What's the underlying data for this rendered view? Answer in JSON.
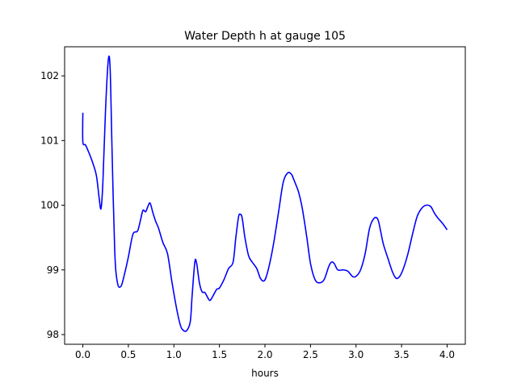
{
  "chart_data": {
    "type": "line",
    "title": "Water Depth h at gauge 105",
    "xlabel": "hours",
    "ylabel": "",
    "xlim": [
      -0.2,
      4.2
    ],
    "ylim": [
      97.85,
      102.45
    ],
    "grid": false,
    "xticks": [
      {
        "value": 0.0,
        "label": "0.0"
      },
      {
        "value": 0.5,
        "label": "0.5"
      },
      {
        "value": 1.0,
        "label": "1.0"
      },
      {
        "value": 1.5,
        "label": "1.5"
      },
      {
        "value": 2.0,
        "label": "2.0"
      },
      {
        "value": 2.5,
        "label": "2.5"
      },
      {
        "value": 3.0,
        "label": "3.0"
      },
      {
        "value": 3.5,
        "label": "3.5"
      },
      {
        "value": 4.0,
        "label": "4.0"
      }
    ],
    "yticks": [
      {
        "value": 98,
        "label": "98"
      },
      {
        "value": 99,
        "label": "99"
      },
      {
        "value": 100,
        "label": "100"
      },
      {
        "value": 101,
        "label": "101"
      },
      {
        "value": 102,
        "label": "102"
      }
    ],
    "series": [
      {
        "color": "#0000ff",
        "x": [
          0.0,
          0.0,
          0.03,
          0.07,
          0.11,
          0.15,
          0.18,
          0.2,
          0.22,
          0.25,
          0.28,
          0.3,
          0.32,
          0.35,
          0.38,
          0.42,
          0.46,
          0.5,
          0.55,
          0.6,
          0.63,
          0.66,
          0.69,
          0.72,
          0.74,
          0.77,
          0.8,
          0.83,
          0.88,
          0.93,
          0.98,
          1.03,
          1.07,
          1.1,
          1.14,
          1.18,
          1.2,
          1.23,
          1.25,
          1.28,
          1.31,
          1.34,
          1.38,
          1.4,
          1.43,
          1.47,
          1.5,
          1.55,
          1.6,
          1.65,
          1.68,
          1.71,
          1.73,
          1.75,
          1.78,
          1.82,
          1.86,
          1.91,
          1.95,
          1.99,
          2.02,
          2.06,
          2.1,
          2.15,
          2.2,
          2.25,
          2.29,
          2.31,
          2.33,
          2.37,
          2.41,
          2.46,
          2.5,
          2.55,
          2.6,
          2.65,
          2.7,
          2.73,
          2.76,
          2.8,
          2.86,
          2.91,
          2.96,
          3.0,
          3.05,
          3.1,
          3.15,
          3.2,
          3.24,
          3.27,
          3.3,
          3.35,
          3.4,
          3.44,
          3.48,
          3.52,
          3.57,
          3.62,
          3.67,
          3.72,
          3.77,
          3.82,
          3.86,
          3.9,
          3.95,
          4.0
        ],
        "y": [
          101.43,
          100.98,
          100.93,
          100.8,
          100.65,
          100.45,
          100.1,
          99.95,
          100.35,
          101.5,
          102.25,
          102.1,
          100.9,
          99.3,
          98.8,
          98.75,
          98.95,
          99.2,
          99.55,
          99.6,
          99.75,
          99.92,
          99.9,
          100.0,
          100.03,
          99.88,
          99.75,
          99.65,
          99.42,
          99.25,
          98.8,
          98.4,
          98.15,
          98.07,
          98.06,
          98.2,
          98.6,
          99.12,
          99.1,
          98.8,
          98.66,
          98.65,
          98.55,
          98.53,
          98.6,
          98.7,
          98.72,
          98.85,
          99.02,
          99.12,
          99.5,
          99.82,
          99.86,
          99.8,
          99.5,
          99.22,
          99.12,
          99.02,
          98.87,
          98.83,
          98.92,
          99.15,
          99.45,
          99.9,
          100.35,
          100.5,
          100.48,
          100.42,
          100.35,
          100.2,
          99.95,
          99.5,
          99.1,
          98.85,
          98.8,
          98.85,
          99.05,
          99.12,
          99.1,
          99.0,
          99.0,
          98.98,
          98.9,
          98.9,
          99.0,
          99.25,
          99.65,
          99.8,
          99.78,
          99.6,
          99.4,
          99.18,
          98.97,
          98.87,
          98.9,
          99.02,
          99.25,
          99.55,
          99.82,
          99.95,
          100.0,
          99.98,
          99.88,
          99.8,
          99.72,
          99.62
        ]
      }
    ]
  }
}
